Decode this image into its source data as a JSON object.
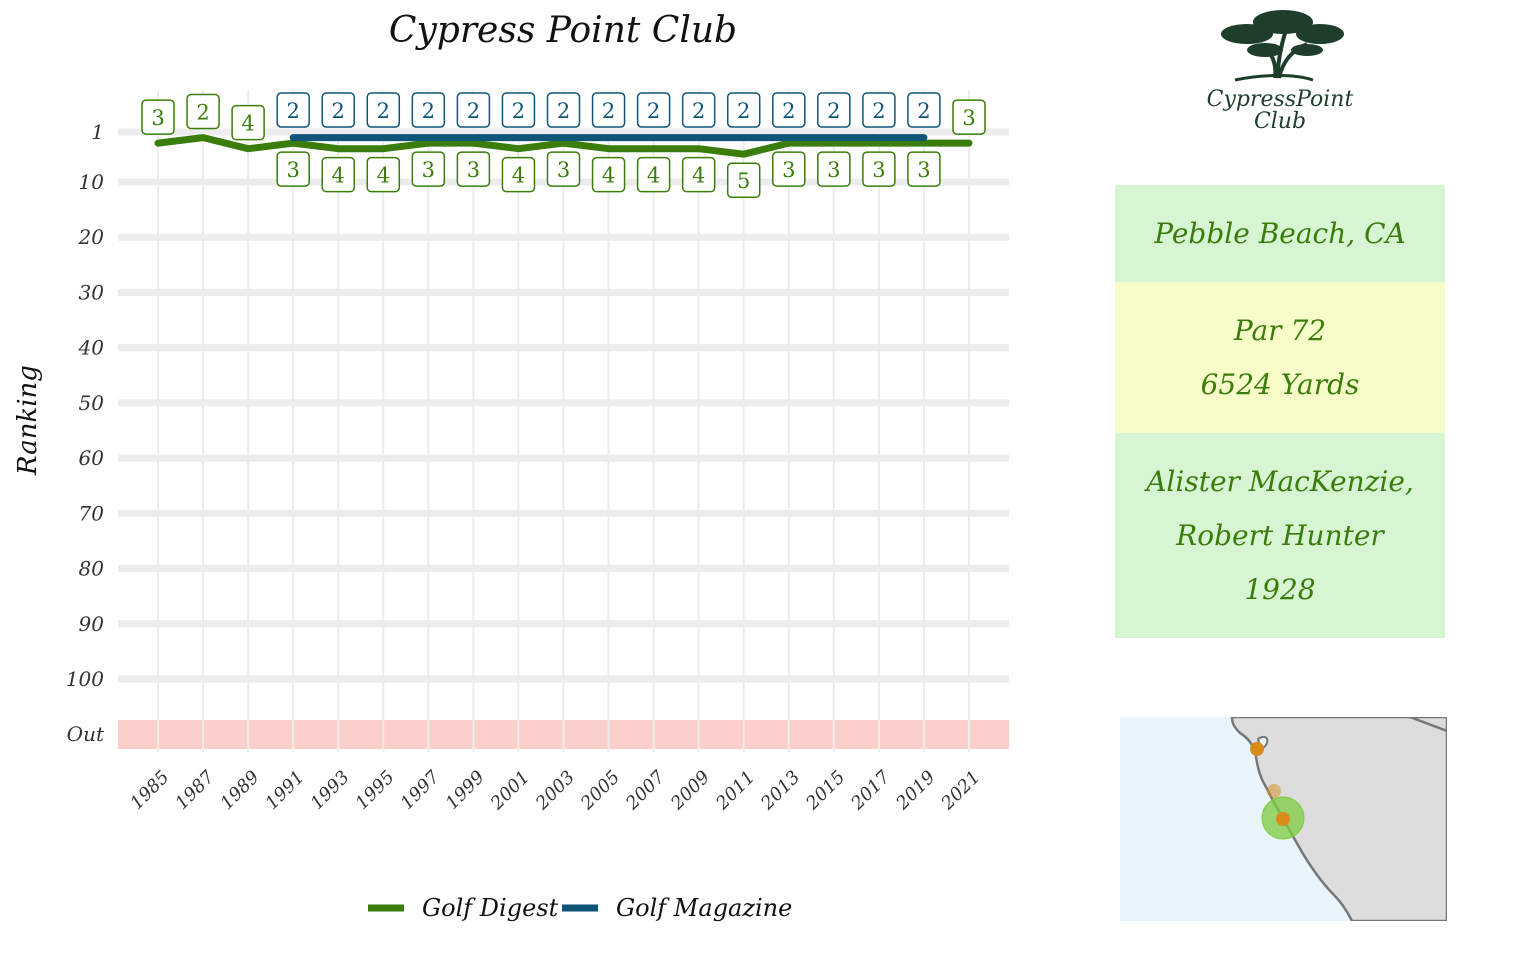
{
  "page": {
    "background": "#ffffff"
  },
  "chart_data": {
    "type": "line",
    "title": "Cypress Point Club",
    "xlabel": "",
    "ylabel": "Ranking",
    "x_range": [
      1985,
      2021
    ],
    "x_ticks": [
      "1985",
      "1987",
      "1989",
      "1991",
      "1993",
      "1995",
      "1997",
      "1999",
      "2001",
      "2003",
      "2005",
      "2007",
      "2009",
      "2011",
      "2013",
      "2015",
      "2017",
      "2019",
      "2021"
    ],
    "y_scale": "reversed, top rank 1 at top, values outside top 100 shown in Out band",
    "y_ticks": [
      "1",
      "10",
      "20",
      "30",
      "40",
      "50",
      "60",
      "70",
      "80",
      "90",
      "100",
      "Out"
    ],
    "y_tick_values": [
      1,
      10,
      20,
      30,
      40,
      50,
      60,
      70,
      80,
      90,
      100,
      110
    ],
    "out_band_color": "#fccfcc",
    "grid": true,
    "legend_position": "bottom",
    "series": [
      {
        "name": "Golf Digest",
        "color": "#3a7d0a",
        "label_position": "below",
        "x": [
          1985,
          1987,
          1989,
          1991,
          1993,
          1995,
          1997,
          1999,
          2001,
          2003,
          2005,
          2007,
          2009,
          2011,
          2013,
          2015,
          2017,
          2019,
          2021
        ],
        "values": [
          3,
          2,
          4,
          3,
          4,
          4,
          3,
          3,
          4,
          3,
          4,
          4,
          4,
          5,
          3,
          3,
          3,
          3,
          3
        ],
        "labels": [
          "3",
          "2",
          "4",
          "3",
          "4",
          "4",
          "3",
          "3",
          "4",
          "3",
          "4",
          "4",
          "4",
          "5",
          "3",
          "3",
          "3",
          "3",
          "3"
        ]
      },
      {
        "name": "Golf Magazine",
        "color": "#0e5578",
        "label_position": "above",
        "x": [
          1991,
          1993,
          1995,
          1997,
          1999,
          2001,
          2003,
          2005,
          2007,
          2009,
          2011,
          2013,
          2015,
          2017,
          2019
        ],
        "values": [
          2,
          2,
          2,
          2,
          2,
          2,
          2,
          2,
          2,
          2,
          2,
          2,
          2,
          2,
          2
        ],
        "labels": [
          "2",
          "2",
          "2",
          "2",
          "2",
          "2",
          "2",
          "2",
          "2",
          "2",
          "2",
          "2",
          "2",
          "2",
          "2"
        ]
      }
    ]
  },
  "logo": {
    "line1": "CypressPoint",
    "line2": "Club",
    "icon": "cypress-tree-icon",
    "color": "#1f3d2b"
  },
  "info": {
    "location": "Pebble Beach, CA",
    "par": "Par 72",
    "yards": "6524 Yards",
    "architect_1": "Alister MacKenzie,",
    "architect_2": "Robert Hunter",
    "year": "1928",
    "colors": {
      "text": "#3a7d0a",
      "green_box": "#d8f5d3",
      "yellow_box": "#f6fdc9"
    }
  },
  "map": {
    "icon": "california-coast-map",
    "sea_color": "#eaf4fc",
    "land_color": "#dddddd",
    "marker_color": "#d98b1c",
    "highlight_color": "#7ccc3d"
  }
}
